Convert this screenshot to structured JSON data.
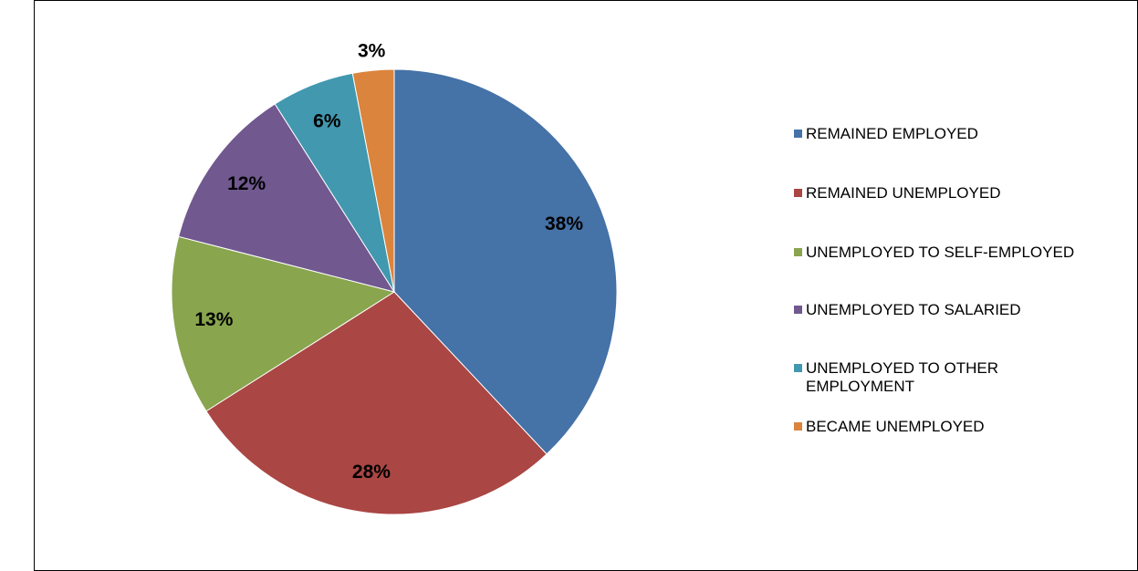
{
  "chart_data": {
    "type": "pie",
    "categories": [
      "REMAINED EMPLOYED",
      "REMAINED UNEMPLOYED",
      "UNEMPLOYED TO SELF-EMPLOYED",
      "UNEMPLOYED TO SALARIED",
      "UNEMPLOYED TO OTHER EMPLOYMENT",
      "BECAME UNEMPLOYED"
    ],
    "values": [
      38,
      28,
      13,
      12,
      6,
      3
    ],
    "value_labels": [
      "38%",
      "28%",
      "13%",
      "12%",
      "6%",
      "3%"
    ],
    "colors": [
      "#4572a7",
      "#aa4643",
      "#89a54e",
      "#71588f",
      "#4198af",
      "#db843d"
    ],
    "legend": "right"
  }
}
